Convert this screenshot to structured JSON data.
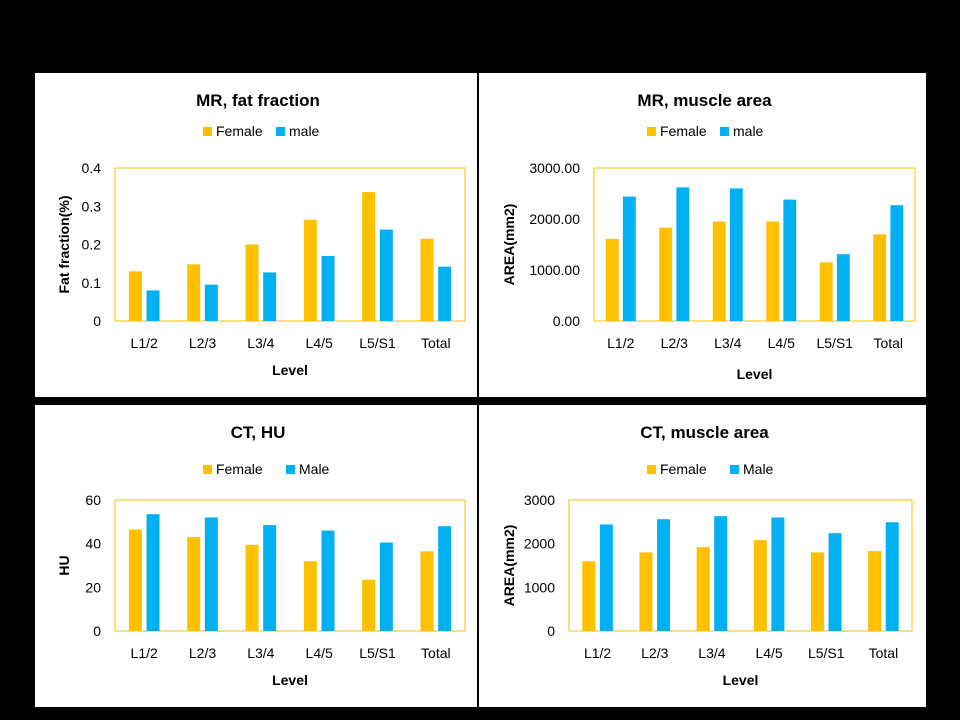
{
  "colors": {
    "female": "#FFC000",
    "male": "#00B0F0",
    "plot_border": "#FFC000",
    "background": "#000000"
  },
  "chart_data": [
    {
      "type": "bar",
      "title": "MR, fat fraction",
      "xlabel": "Level",
      "ylabel": "Fat  fraction(%)",
      "categories": [
        "L1/2",
        "L2/3",
        "L3/4",
        "L4/5",
        "L5/S1",
        "Total"
      ],
      "ylim": [
        0,
        0.4
      ],
      "yticks": [
        "0",
        "0.1",
        "0.2",
        "0.3",
        "0.4"
      ],
      "legend": "top",
      "series": [
        {
          "name": "Female",
          "values": [
            0.13,
            0.148,
            0.2,
            0.265,
            0.337,
            0.215
          ]
        },
        {
          "name": "male",
          "values": [
            0.08,
            0.095,
            0.127,
            0.17,
            0.239,
            0.142
          ]
        }
      ]
    },
    {
      "type": "bar",
      "title": "MR, muscle area",
      "xlabel": "Level",
      "ylabel": "AREA(mm2)",
      "categories": [
        "L1/2",
        "L2/3",
        "L3/4",
        "L4/5",
        "L5/S1",
        "Total"
      ],
      "ylim": [
        0,
        3000
      ],
      "yticks": [
        "0.00",
        "1000.00",
        "2000.00",
        "3000.00"
      ],
      "legend": "top",
      "series": [
        {
          "name": "Female",
          "values": [
            1610,
            1830,
            1950,
            1950,
            1150,
            1700
          ]
        },
        {
          "name": "male",
          "values": [
            2440,
            2620,
            2600,
            2380,
            1310,
            2270
          ]
        }
      ]
    },
    {
      "type": "bar",
      "title": "CT, HU",
      "xlabel": "Level",
      "ylabel": "HU",
      "categories": [
        "L1/2",
        "L2/3",
        "L3/4",
        "L4/5",
        "L5/S1",
        "Total"
      ],
      "ylim": [
        0,
        60
      ],
      "yticks": [
        "0",
        "20",
        "40",
        "60"
      ],
      "legend": "top",
      "series": [
        {
          "name": "Female",
          "values": [
            46.5,
            43,
            39.5,
            32,
            23.5,
            36.5
          ]
        },
        {
          "name": "Male",
          "values": [
            53.5,
            52,
            48.5,
            46,
            40.5,
            48
          ]
        }
      ]
    },
    {
      "type": "bar",
      "title": "CT, muscle area",
      "xlabel": "Level",
      "ylabel": "AREA(mm2)",
      "categories": [
        "L1/2",
        "L2/3",
        "L3/4",
        "L4/5",
        "L5/S1",
        "Total"
      ],
      "ylim": [
        0,
        3000
      ],
      "yticks": [
        "0",
        "1000",
        "2000",
        "3000"
      ],
      "legend": "top",
      "series": [
        {
          "name": "Female",
          "values": [
            1600,
            1800,
            1920,
            2080,
            1800,
            1830
          ]
        },
        {
          "name": "Male",
          "values": [
            2440,
            2560,
            2630,
            2600,
            2240,
            2490
          ]
        }
      ]
    }
  ]
}
